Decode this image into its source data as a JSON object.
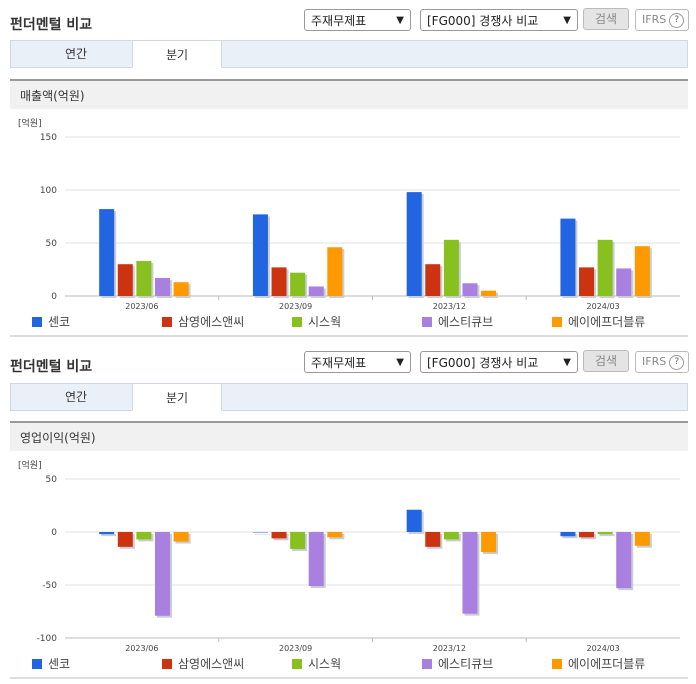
{
  "panels": [
    {
      "title": "펀더멘털 비교",
      "select1": "주재무제표",
      "select2": "[FG000] 경쟁사 비교",
      "search_label": "검색",
      "ifrs_label": "IFRS",
      "tabs": [
        "연간",
        "분기"
      ],
      "active_tab": 1,
      "subtitle": "매출액(억원)"
    },
    {
      "title": "펀더멘털 비교",
      "select1": "주재무제표",
      "select2": "[FG000] 경쟁사 비교",
      "search_label": "검색",
      "ifrs_label": "IFRS",
      "tabs": [
        "연간",
        "분기"
      ],
      "active_tab": 1,
      "subtitle": "영업이익(억원)"
    }
  ],
  "colors": [
    "#2166e0",
    "#cc3311",
    "#88c020",
    "#a97fe0",
    "#ff9900"
  ],
  "chart_data": [
    {
      "type": "bar",
      "title": "매출액(억원)",
      "unit_label": "[억원]",
      "categories": [
        "2023/06",
        "2023/09",
        "2023/12",
        "2024/03"
      ],
      "ylim": [
        0,
        150
      ],
      "yticks": [
        0,
        50,
        100,
        150
      ],
      "grid": true,
      "legend": "bottom",
      "series": [
        {
          "name": "센코",
          "values": [
            82,
            77,
            98,
            73
          ]
        },
        {
          "name": "삼영에스앤씨",
          "values": [
            30,
            27,
            30,
            27
          ]
        },
        {
          "name": "시스웍",
          "values": [
            33,
            22,
            53,
            53
          ]
        },
        {
          "name": "에스티큐브",
          "values": [
            17,
            9,
            12,
            26
          ]
        },
        {
          "name": "에이에프더블류",
          "values": [
            13,
            46,
            5,
            47
          ]
        }
      ]
    },
    {
      "type": "bar",
      "title": "영업이익(억원)",
      "unit_label": "[억원]",
      "categories": [
        "2023/06",
        "2023/09",
        "2023/12",
        "2024/03"
      ],
      "ylim": [
        -100,
        50
      ],
      "yticks": [
        -100,
        -50,
        0,
        50
      ],
      "grid": true,
      "legend": "bottom",
      "series": [
        {
          "name": "센코",
          "values": [
            -2,
            0,
            21,
            -4
          ]
        },
        {
          "name": "삼영에스앤씨",
          "values": [
            -14,
            -6,
            -14,
            -5
          ]
        },
        {
          "name": "시스웍",
          "values": [
            -7,
            -16,
            -7,
            -2
          ]
        },
        {
          "name": "에스티큐브",
          "values": [
            -79,
            -51,
            -77,
            -53
          ]
        },
        {
          "name": "에이에프더블류",
          "values": [
            -9,
            -5,
            -19,
            -13
          ]
        }
      ]
    }
  ]
}
